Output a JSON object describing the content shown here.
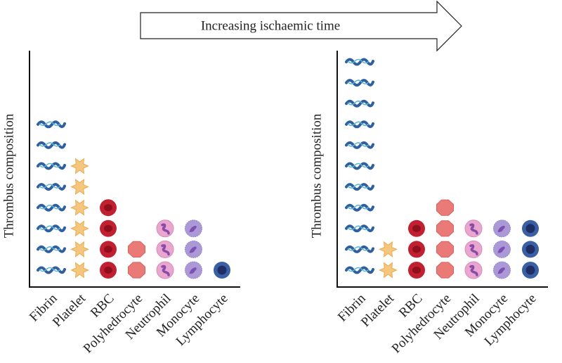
{
  "annotation": "Increasing ischaemic time",
  "chart_data": [
    {
      "type": "pictograph",
      "ylabel": "Thrombus composition",
      "categories": [
        "Fibrin",
        "Platelet",
        "RBC",
        "Polyhedrocyte",
        "Neutrophil",
        "Monocyte",
        "Lymphocyte"
      ],
      "values": [
        8,
        6,
        4,
        2,
        3,
        3,
        1
      ],
      "colors": [
        "#2f5f9e",
        "#f5c77e",
        "#c0202f",
        "#ea7a78",
        "#e9a6cf",
        "#ab98d6",
        "#3b5fa5"
      ]
    },
    {
      "type": "pictograph",
      "ylabel": "Thrombus composition",
      "categories": [
        "Fibrin",
        "Platelet",
        "RBC",
        "Polyhedrocyte",
        "Neutrophil",
        "Monocyte",
        "Lymphocyte"
      ],
      "values": [
        11,
        2,
        3,
        4,
        3,
        3,
        3
      ],
      "colors": [
        "#2f5f9e",
        "#f5c77e",
        "#c0202f",
        "#ea7a78",
        "#e9a6cf",
        "#ab98d6",
        "#3b5fa5"
      ]
    }
  ]
}
